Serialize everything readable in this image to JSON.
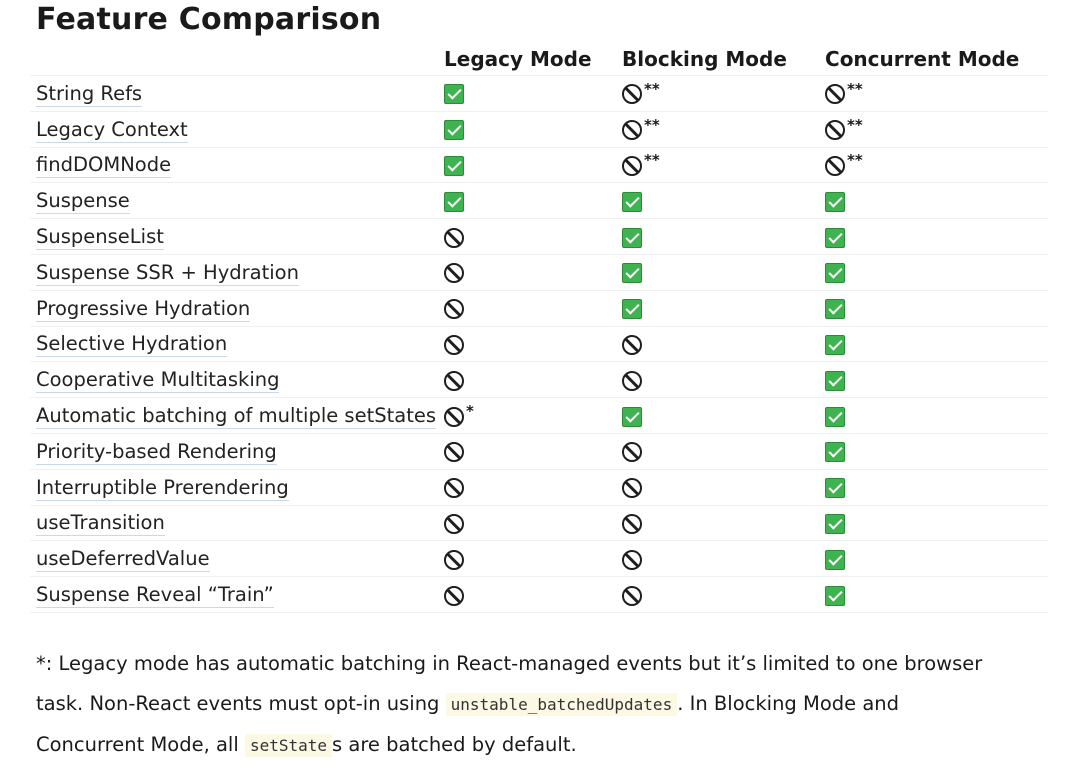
{
  "title": "Feature Comparison",
  "columns": [
    "Legacy Mode",
    "Blocking Mode",
    "Concurrent Mode"
  ],
  "rows": [
    {
      "feature": "String Refs",
      "cells": [
        {
          "s": "yes",
          "n": ""
        },
        {
          "s": "no",
          "n": "**"
        },
        {
          "s": "no",
          "n": "**"
        }
      ]
    },
    {
      "feature": "Legacy Context",
      "cells": [
        {
          "s": "yes",
          "n": ""
        },
        {
          "s": "no",
          "n": "**"
        },
        {
          "s": "no",
          "n": "**"
        }
      ]
    },
    {
      "feature": "findDOMNode",
      "cells": [
        {
          "s": "yes",
          "n": ""
        },
        {
          "s": "no",
          "n": "**"
        },
        {
          "s": "no",
          "n": "**"
        }
      ]
    },
    {
      "feature": "Suspense",
      "cells": [
        {
          "s": "yes",
          "n": ""
        },
        {
          "s": "yes",
          "n": ""
        },
        {
          "s": "yes",
          "n": ""
        }
      ]
    },
    {
      "feature": "SuspenseList",
      "cells": [
        {
          "s": "no",
          "n": ""
        },
        {
          "s": "yes",
          "n": ""
        },
        {
          "s": "yes",
          "n": ""
        }
      ]
    },
    {
      "feature": "Suspense SSR + Hydration",
      "cells": [
        {
          "s": "no",
          "n": ""
        },
        {
          "s": "yes",
          "n": ""
        },
        {
          "s": "yes",
          "n": ""
        }
      ]
    },
    {
      "feature": "Progressive Hydration",
      "cells": [
        {
          "s": "no",
          "n": ""
        },
        {
          "s": "yes",
          "n": ""
        },
        {
          "s": "yes",
          "n": ""
        }
      ]
    },
    {
      "feature": "Selective Hydration",
      "cells": [
        {
          "s": "no",
          "n": ""
        },
        {
          "s": "no",
          "n": ""
        },
        {
          "s": "yes",
          "n": ""
        }
      ]
    },
    {
      "feature": "Cooperative Multitasking",
      "cells": [
        {
          "s": "no",
          "n": ""
        },
        {
          "s": "no",
          "n": ""
        },
        {
          "s": "yes",
          "n": ""
        }
      ]
    },
    {
      "feature": "Automatic batching of multiple setStates",
      "cells": [
        {
          "s": "no",
          "n": "*"
        },
        {
          "s": "yes",
          "n": ""
        },
        {
          "s": "yes",
          "n": ""
        }
      ]
    },
    {
      "feature": "Priority-based Rendering",
      "cells": [
        {
          "s": "no",
          "n": ""
        },
        {
          "s": "no",
          "n": ""
        },
        {
          "s": "yes",
          "n": ""
        }
      ]
    },
    {
      "feature": "Interruptible Prerendering",
      "cells": [
        {
          "s": "no",
          "n": ""
        },
        {
          "s": "no",
          "n": ""
        },
        {
          "s": "yes",
          "n": ""
        }
      ]
    },
    {
      "feature": "useTransition",
      "cells": [
        {
          "s": "no",
          "n": ""
        },
        {
          "s": "no",
          "n": ""
        },
        {
          "s": "yes",
          "n": ""
        }
      ]
    },
    {
      "feature": "useDeferredValue",
      "cells": [
        {
          "s": "no",
          "n": ""
        },
        {
          "s": "no",
          "n": ""
        },
        {
          "s": "yes",
          "n": ""
        }
      ]
    },
    {
      "feature": "Suspense Reveal “Train”",
      "cells": [
        {
          "s": "no",
          "n": ""
        },
        {
          "s": "no",
          "n": ""
        },
        {
          "s": "yes",
          "n": ""
        }
      ]
    }
  ],
  "footnote": {
    "part1": "*: Legacy mode has automatic batching in React-managed events but it’s limited to one browser task. Non-React events must opt-in using ",
    "code1": "unstable_batchedUpdates",
    "part2": ". In Blocking Mode and Concurrent Mode, all ",
    "code2": "setState",
    "part3": "s are batched by default."
  },
  "icons": {
    "yes": "checkbox-checked-icon",
    "no": "prohibited-icon"
  },
  "colors": {
    "yes": "#3fb34f",
    "link_underline": "#c9d9ea",
    "code_bg": "#fbf8e4"
  }
}
